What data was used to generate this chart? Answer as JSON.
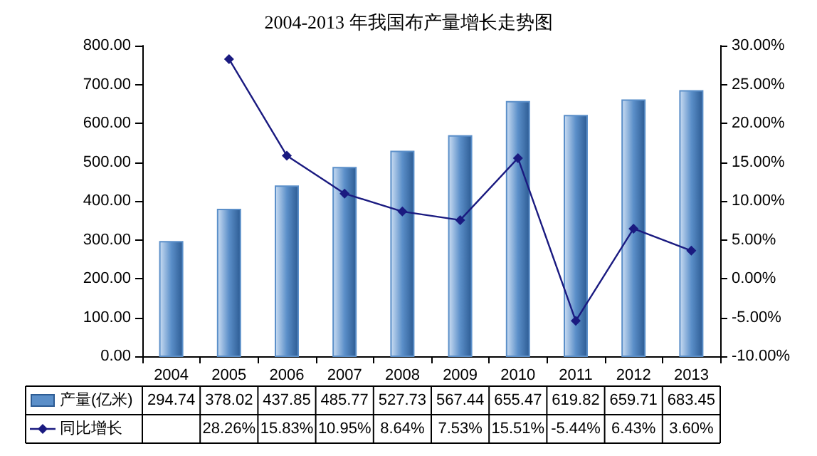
{
  "chart_data": {
    "type": "bar",
    "title": "2004-2013 年我国布产量增长走势图",
    "categories": [
      "2004",
      "2005",
      "2006",
      "2007",
      "2008",
      "2009",
      "2010",
      "2011",
      "2012",
      "2013"
    ],
    "series": [
      {
        "name": "产量(亿米)",
        "color": "#5b8fc9",
        "values": [
          294.74,
          378.02,
          437.85,
          485.77,
          527.73,
          567.44,
          655.47,
          619.82,
          659.71,
          683.45
        ],
        "value_labels": [
          "294.74",
          "378.02",
          "437.85",
          "485.77",
          "527.73",
          "567.44",
          "655.47",
          "619.82",
          "659.71",
          "683.45"
        ]
      },
      {
        "name": "同比增长",
        "type": "line",
        "axis": "y2",
        "color": "#1a1a80",
        "values": [
          null,
          28.26,
          15.83,
          10.95,
          8.64,
          7.53,
          15.51,
          -5.44,
          6.43,
          3.6
        ],
        "value_labels": [
          null,
          "28.26%",
          "15.83%",
          "10.95%",
          "8.64%",
          "7.53%",
          "15.51%",
          "-5.44%",
          "6.43%",
          "3.60%"
        ]
      }
    ],
    "ylim": [
      0,
      800
    ],
    "yticks": [
      {
        "value": 0,
        "label": "0.00"
      },
      {
        "value": 100,
        "label": "100.00"
      },
      {
        "value": 200,
        "label": "200.00"
      },
      {
        "value": 300,
        "label": "300.00"
      },
      {
        "value": 400,
        "label": "400.00"
      },
      {
        "value": 500,
        "label": "500.00"
      },
      {
        "value": 600,
        "label": "600.00"
      },
      {
        "value": 700,
        "label": "700.00"
      },
      {
        "value": 800,
        "label": "800.00"
      }
    ],
    "y2lim": [
      -10,
      30
    ],
    "y2ticks": [
      {
        "value": -10,
        "label": "-10.00%"
      },
      {
        "value": -5,
        "label": "-5.00%"
      },
      {
        "value": 0,
        "label": "0.00%"
      },
      {
        "value": 5,
        "label": "5.00%"
      },
      {
        "value": 10,
        "label": "10.00%"
      },
      {
        "value": 15,
        "label": "15.00%"
      },
      {
        "value": 20,
        "label": "20.00%"
      },
      {
        "value": 25,
        "label": "25.00%"
      },
      {
        "value": 30,
        "label": "30.00%"
      }
    ],
    "legend": "bottom",
    "marker": "diamond",
    "line_style": "solid"
  }
}
